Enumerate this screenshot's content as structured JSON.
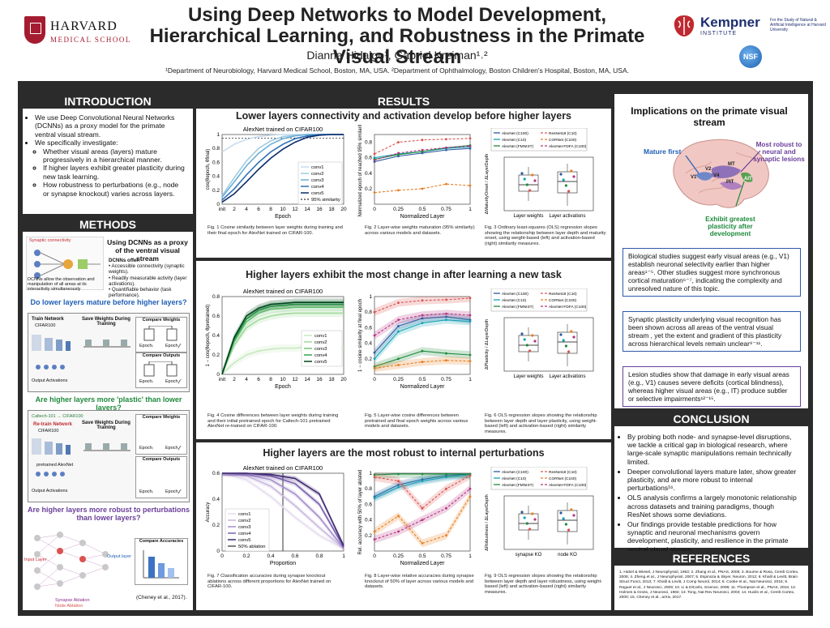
{
  "header": {
    "institution": "HARVARD",
    "school": "MEDICAL SCHOOL",
    "title": "Using Deep Networks to Model Development, Hierarchical Learning, and Robustness in the Primate Visual Stream",
    "authors": "Dianna Hidalgo¹, Gabriel Kreiman¹˒²",
    "affiliations": "¹Department of Neurobiology, Harvard Medical School, Boston, MA, USA.  ²Department of Ophthalmology, Boston Children's Hospital, Boston, MA, USA.",
    "kempner_name": "Kempner",
    "kempner_sub": "INSTITUTE",
    "kempner_desc": "For the Study of Natural & Artificial Intelligence at Harvard University",
    "nsf": "NSF"
  },
  "introduction": {
    "heading": "INTRODUCTION",
    "bullets": [
      "We use Deep Convolutional Neural Networks (DCNNs) as a proxy model for the primate ventral visual stream.",
      "We specifically investigate:"
    ],
    "sub_bullets": [
      "Whether visual areas (layers) mature progressively in a hierarchical manner.",
      "If higher layers exhibit greater plasticity during new task learning.",
      "How robustness to perturbations (e.g., node or synapse knockout) varies across layers."
    ]
  },
  "methods": {
    "heading": "METHODS",
    "proxy_title": "Using DCNNs as a proxy of the ventral visual stream",
    "offer_head": "DCNNs offer:",
    "offers": [
      "Accessible connectivity (synaptic weights).",
      "Readily measurable activity (layer activations).",
      "Quantifiable behavior (task performance)."
    ],
    "synaptic_label": "Synaptic connectivity",
    "dcnn_note": "DCNNs allow the observation and manipulation of all areas at its interactivity simultaneously",
    "q1": "Do lower layers mature before higher layers?",
    "q2": "Are higher layers more 'plastic' than lower layers?",
    "q3": "Are higher layers more robust to perturbations than lower layers?",
    "train_network": "Train Network",
    "cifar100": "CIFAR100",
    "output_activations": "Output Activations",
    "save_weights": "Save Weights During Training",
    "compare_weights": "Compare Weights",
    "compare_outputs": "Compare Outputs",
    "epoch_i": "Epochᵢ",
    "epoch_f": "Epoch𝒻",
    "re_train": "Re-train Network",
    "caltech_label": "Caltech-101 → CIFAR100",
    "pretrained_alexnet": "pretrained AlexNet",
    "compare_accuracies": "Compare Accuracies",
    "input_layer": "Input Layer",
    "output_layer": "Output layer",
    "synapse_ablation": "Synapse Ablation",
    "node_ablation": "Node Ablation",
    "citation": "(Cheney et al., 2017)."
  },
  "results": {
    "heading": "RESULTS",
    "section1_title": "Lower layers connectivity and activation develop before higher layers",
    "section2_title": "Higher layers exhibit the most change in after learning a new task",
    "section3_title": "Higher layers are the most robust to internal perturbations",
    "fig1_title": "AlexNet trained on CIFAR100",
    "fig4_title": "AlexNet trained on CIFAR100",
    "fig7_title": "AlexNet trained on CIFAR100",
    "fig1_caption": "Fig. 1 Cosine similarity between layer weights during training and their final epoch for AlexNet trained on CIFAR-100.",
    "fig2_caption": "Fig. 2 Layer-wise weights maturation (95% similarity) across various models and datasets.",
    "fig3_caption": "Fig. 3 Ordinary least-squares (OLS) regression slopes showing the relationship between layer depth and maturity onset, using weight-based (left) and activation-based (right) similarity measures.",
    "fig4_caption": "Fig. 4 Cosine differences between layer weights during training and their initial pretrained epoch for Caltech-101 pretrained AlexNet re-trained on CIFAR-100.",
    "fig5_caption": "Fig. 5 Layer-wise cosine differences between pretrained and final epoch weights across various models and datasets.",
    "fig6_caption": "Fig. 6 OLS regression slopes showing the relationship between layer depth and layer plasticity, using weight-based (left) and activation-based (right) similarity measures.",
    "fig7_caption": "Fig. 7 Classification accuracies during synapse knockout ablations across different proportions for AlexNet trained on CIFAR-100.",
    "fig8_caption": "Fig. 8 Layer-wise relative accuracies during synapse knockout of 50% of layer across various models and datasets.",
    "fig9_caption": "Fig. 9 OLS regression slopes showing the relationship between layer depth and layer robustness, using weight-based (left) and activation-based (right) similarity measures.",
    "legend_models": [
      "AlexNet (C100)",
      "AlexNet (C10)",
      "AlexNet (FMNIST)",
      "ResNet18 (C10)",
      "CORNet (C100)",
      "AlexNet-FDFA (C100)"
    ],
    "box_labels_a": [
      "Layer weights",
      "Layer activations"
    ],
    "box_labels_b": [
      "synapse KO",
      "node KO"
    ],
    "ylabel1": "cos(θepoch, θfinal)",
    "ylabel2": "Normalized epoch of reached 95% similarity",
    "ylabel3": "ΔMaturityOnset / ΔLayerDepth",
    "ylabel4": "1 − cos(θepoch, θpretrained)",
    "ylabel5": "1 − cosine similarity at final epoch",
    "ylabel6": "ΔPlasticity / ΔLayerDepth",
    "ylabel7": "Accuracy",
    "ylabel8": "Rel. accuracy with 50% of layer ablated",
    "ylabel9": "ΔRobustness / ΔLayerDepth",
    "xlabel_epoch": "Epoch",
    "xlabel_layer": "Normalized Layer",
    "xlabel_prop": "Proportion",
    "layer_names": [
      "conv1",
      "conv2",
      "conv3",
      "conv4",
      "conv5"
    ],
    "sim95": "95% similarity",
    "ablation50": "50% ablation"
  },
  "implications": {
    "title": "Implications on the primate visual stream",
    "mature_first": "Mature first",
    "most_robust": "Most robust to neural and synaptic lesions",
    "plastic": "Exhibit greatest plasticity after development",
    "areas": [
      "V1",
      "V2",
      "V4",
      "MT",
      "PIT",
      "AIT"
    ],
    "box1": "Biological studies suggest early visual areas (e.g., V1) establish neuronal selectivity earlier than higher areas¹⁻⁵. Other studies suggest more synchronous cortical maturation⁶⁻⁷, indicating the complexity and unresolved nature of this topic.",
    "box2": "Synaptic plasticity underlying visual recognition has been shown across all areas of the ventral visual stream , yet the extent and gradient of this plasticity across hierarchical levels remain unclear⁸⁻¹¹.",
    "box3": "Lesion studies show that damage in early visual areas (e.g., V1) causes severe deficits (cortical blindness), whereas higher visual areas (e.g., IT) produce subtler or selective impairments¹²⁻¹⁵."
  },
  "conclusion": {
    "heading": "CONCLUSION",
    "bullets": [
      "By probing both node- and synapse-level disruptions, we tackle a critical gap in biological research, where large-scale synaptic manipulations remain technically limited.",
      "Deeper convolutional layers mature later, show greater plasticity, and are more robust to internal perturbations¹⁶.",
      "OLS analysis confirms a largely monotonic relationship across datasets and training paradigms, though ResNet shows some deviations.",
      "Our findings provide testable predictions for how synaptic and neuronal mechanisms govern development, plasticity, and resilience in the primate ventral visual stream."
    ]
  },
  "references": {
    "heading": "REFERENCES",
    "text": "1. Hubel & Wiesel, J Neurophysiol, 1963; 2. Zhang et al., PNAS, 2005; 3. Bourne & Rosa, Cereb Cortex, 2006; 4. Zheng et al., J Neurophysiol, 2007; 5. Espinoza & Skyer, Neuron, 2012; 6. Khalil & Levitt, Brain Struct Funct, 2013; 7. Khalil & Levitt, J Comp Neurol, 2014; 8. Cooke et al., Nat Neurosci, 2015; 9. Raguet et al., J Neurosci, 2009; 10. Li & DiCarlo, Science, 2008; 11. Thompson et al., PNAS, 2016; 12. Holmes & Gross, J Neurosci, 1984; 13. Tong, Nat Rev Neurosci, 2003; 14. Huxlin et al., Cereb Cortex, 2000; 15. Cheney et al., arXiv, 2017."
  },
  "colors": {
    "dark": "#2b2b2b",
    "blue_box": "#2d5aa8",
    "purple_box": "#6a3e9a",
    "green_q": "#1e8a3c",
    "blue_q": "#1f5fb5",
    "purple_q": "#6a3e9a"
  },
  "chart_data": [
    {
      "type": "line",
      "id": "fig1",
      "title": "AlexNet trained on CIFAR100",
      "xlabel": "Epoch",
      "ylabel": "cos(θepoch, θfinal)",
      "x": [
        "init",
        2,
        4,
        6,
        8,
        10,
        12,
        14,
        16,
        18,
        20
      ],
      "ylim": [
        0,
        1
      ],
      "series": [
        {
          "name": "conv1",
          "values": [
            0.75,
            0.86,
            0.93,
            0.97,
            0.99,
            1,
            1,
            1,
            1,
            1,
            1
          ]
        },
        {
          "name": "conv2",
          "values": [
            0.12,
            0.38,
            0.62,
            0.8,
            0.91,
            0.97,
            0.99,
            1,
            1,
            1,
            1
          ]
        },
        {
          "name": "conv3",
          "values": [
            0.1,
            0.32,
            0.55,
            0.73,
            0.86,
            0.94,
            0.98,
            1,
            1,
            1,
            1
          ]
        },
        {
          "name": "conv4",
          "values": [
            0.06,
            0.22,
            0.42,
            0.6,
            0.75,
            0.86,
            0.94,
            0.98,
            1,
            1,
            1
          ]
        },
        {
          "name": "conv5",
          "values": [
            0.03,
            0.15,
            0.32,
            0.5,
            0.66,
            0.79,
            0.89,
            0.96,
            0.99,
            1,
            1
          ]
        }
      ]
    },
    {
      "type": "line",
      "id": "fig2",
      "xlabel": "Normalized Layer",
      "ylabel": "Normalized epoch of reached 95% similarity",
      "x": [
        0,
        0.25,
        0.5,
        0.75,
        1
      ],
      "ylim": [
        0,
        0.9
      ],
      "series": [
        {
          "name": "AlexNet (C100)",
          "values": [
            0.55,
            0.62,
            0.66,
            0.7,
            0.72
          ]
        },
        {
          "name": "AlexNet (C10)",
          "values": [
            0.6,
            0.65,
            0.68,
            0.72,
            0.74
          ]
        },
        {
          "name": "AlexNet (FMNIST)",
          "values": [
            0.58,
            0.64,
            0.68,
            0.73,
            0.76
          ]
        },
        {
          "name": "ResNet18 (C10)",
          "values": [
            0.65,
            0.8,
            0.83,
            0.84,
            0.85
          ]
        },
        {
          "name": "CORNet (C100)",
          "values": [
            0.15,
            0.18,
            0.2,
            0.26,
            0.24
          ]
        },
        {
          "name": "AlexNet-FDFA (C100)",
          "values": [
            0.57,
            0.66,
            0.7,
            0.73,
            0.75
          ]
        }
      ]
    },
    {
      "type": "bar",
      "id": "fig4",
      "title": "AlexNet trained on CIFAR100",
      "xlabel": "Epoch",
      "ylabel": "1 − cos(θepoch, θpretrained)",
      "x": [
        "init",
        2,
        4,
        6,
        8,
        10,
        12,
        14,
        16,
        18,
        20
      ],
      "ylim": [
        0,
        0.8
      ],
      "series": [
        {
          "name": "conv1",
          "values": [
            0,
            0.12,
            0.2,
            0.24,
            0.26,
            0.27,
            0.27,
            0.28,
            0.28,
            0.28,
            0.28
          ]
        },
        {
          "name": "conv2",
          "values": [
            0,
            0.3,
            0.48,
            0.56,
            0.6,
            0.62,
            0.63,
            0.63,
            0.63,
            0.63,
            0.63
          ]
        },
        {
          "name": "conv3",
          "values": [
            0,
            0.34,
            0.54,
            0.63,
            0.67,
            0.68,
            0.69,
            0.69,
            0.69,
            0.69,
            0.69
          ]
        },
        {
          "name": "conv4",
          "values": [
            0,
            0.36,
            0.57,
            0.66,
            0.7,
            0.71,
            0.72,
            0.72,
            0.72,
            0.72,
            0.72
          ]
        },
        {
          "name": "conv5",
          "values": [
            0,
            0.38,
            0.6,
            0.68,
            0.72,
            0.73,
            0.74,
            0.74,
            0.74,
            0.74,
            0.74
          ]
        }
      ]
    },
    {
      "type": "line",
      "id": "fig5",
      "xlabel": "Normalized Layer",
      "ylabel": "1 − cosine similarity at final epoch",
      "x": [
        0,
        0.25,
        0.5,
        0.75,
        1
      ],
      "ylim": [
        0,
        1
      ],
      "series": [
        {
          "name": "AlexNet (C100)",
          "values": [
            0.28,
            0.62,
            0.72,
            0.74,
            0.7
          ]
        },
        {
          "name": "AlexNet (C10)",
          "values": [
            0.2,
            0.55,
            0.66,
            0.7,
            0.68
          ]
        },
        {
          "name": "AlexNet (FMNIST)",
          "values": [
            0.1,
            0.2,
            0.3,
            0.27,
            0.25
          ]
        },
        {
          "name": "ResNet18 (C10)",
          "values": [
            0.8,
            0.92,
            0.95,
            0.96,
            0.98
          ]
        },
        {
          "name": "CORNet (C100)",
          "values": [
            0.08,
            0.12,
            0.16,
            0.18,
            0.17
          ]
        },
        {
          "name": "AlexNet-FDFA (C100)",
          "values": [
            0.5,
            0.7,
            0.76,
            0.78,
            0.76
          ]
        }
      ]
    },
    {
      "type": "line",
      "id": "fig7",
      "title": "AlexNet trained on CIFAR100",
      "xlabel": "Proportion",
      "ylabel": "Accuracy",
      "x": [
        0,
        0.2,
        0.4,
        0.6,
        0.8,
        1
      ],
      "ylim": [
        0,
        0.6
      ],
      "series": [
        {
          "name": "conv1",
          "values": [
            0.6,
            0.55,
            0.42,
            0.26,
            0.12,
            0.02
          ]
        },
        {
          "name": "conv2",
          "values": [
            0.6,
            0.58,
            0.5,
            0.35,
            0.18,
            0.02
          ]
        },
        {
          "name": "conv3",
          "values": [
            0.6,
            0.59,
            0.55,
            0.44,
            0.26,
            0.02
          ]
        },
        {
          "name": "conv4",
          "values": [
            0.6,
            0.6,
            0.58,
            0.52,
            0.36,
            0.03
          ]
        },
        {
          "name": "conv5",
          "values": [
            0.6,
            0.6,
            0.59,
            0.56,
            0.44,
            0.04
          ]
        }
      ]
    },
    {
      "type": "line",
      "id": "fig8",
      "xlabel": "Normalized Layer",
      "ylabel": "Rel. accuracy with 50% of layer ablated",
      "x": [
        0,
        0.25,
        0.5,
        0.75,
        1
      ],
      "ylim": [
        0,
        1
      ],
      "series": [
        {
          "name": "AlexNet (C100)",
          "values": [
            0.7,
            0.85,
            0.92,
            0.97,
            0.99
          ]
        },
        {
          "name": "AlexNet (C10)",
          "values": [
            0.68,
            0.82,
            0.9,
            0.95,
            0.98
          ]
        },
        {
          "name": "AlexNet (FMNIST)",
          "values": [
            0.98,
            0.99,
            0.99,
            0.99,
            0.99
          ]
        },
        {
          "name": "ResNet18 (C10)",
          "values": [
            0.95,
            0.9,
            0.55,
            0.8,
            0.97
          ]
        },
        {
          "name": "CORNet (C100)",
          "values": [
            0.25,
            0.45,
            0.1,
            0.2,
            0.7
          ]
        },
        {
          "name": "AlexNet-FDFA (C100)",
          "values": [
            0.15,
            0.25,
            0.4,
            0.55,
            0.8
          ]
        }
      ]
    }
  ]
}
